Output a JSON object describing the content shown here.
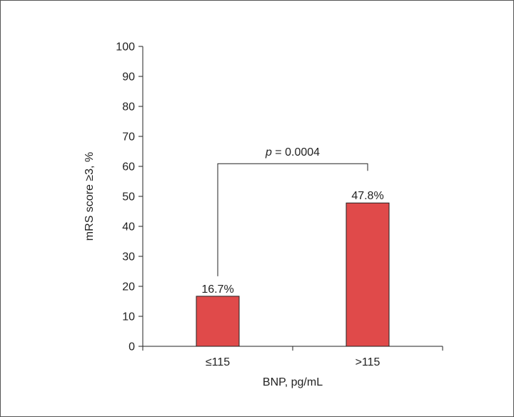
{
  "chart_data": {
    "type": "bar",
    "categories": [
      "≤115",
      ">115"
    ],
    "values": [
      16.7,
      47.8
    ],
    "data_labels": [
      "16.7%",
      "47.8%"
    ],
    "xlabel": "BNP, pg/mL",
    "ylabel": "mRS score ≥3, %",
    "ylim": [
      0,
      100
    ],
    "yticks": [
      0,
      10,
      20,
      30,
      40,
      50,
      60,
      70,
      80,
      90,
      100
    ],
    "grid": false,
    "bar_color": "#e04a4a",
    "bar_edge_color": "#222222",
    "annotation": {
      "p_symbol": "p",
      "p_rest": " = 0.0004"
    }
  }
}
